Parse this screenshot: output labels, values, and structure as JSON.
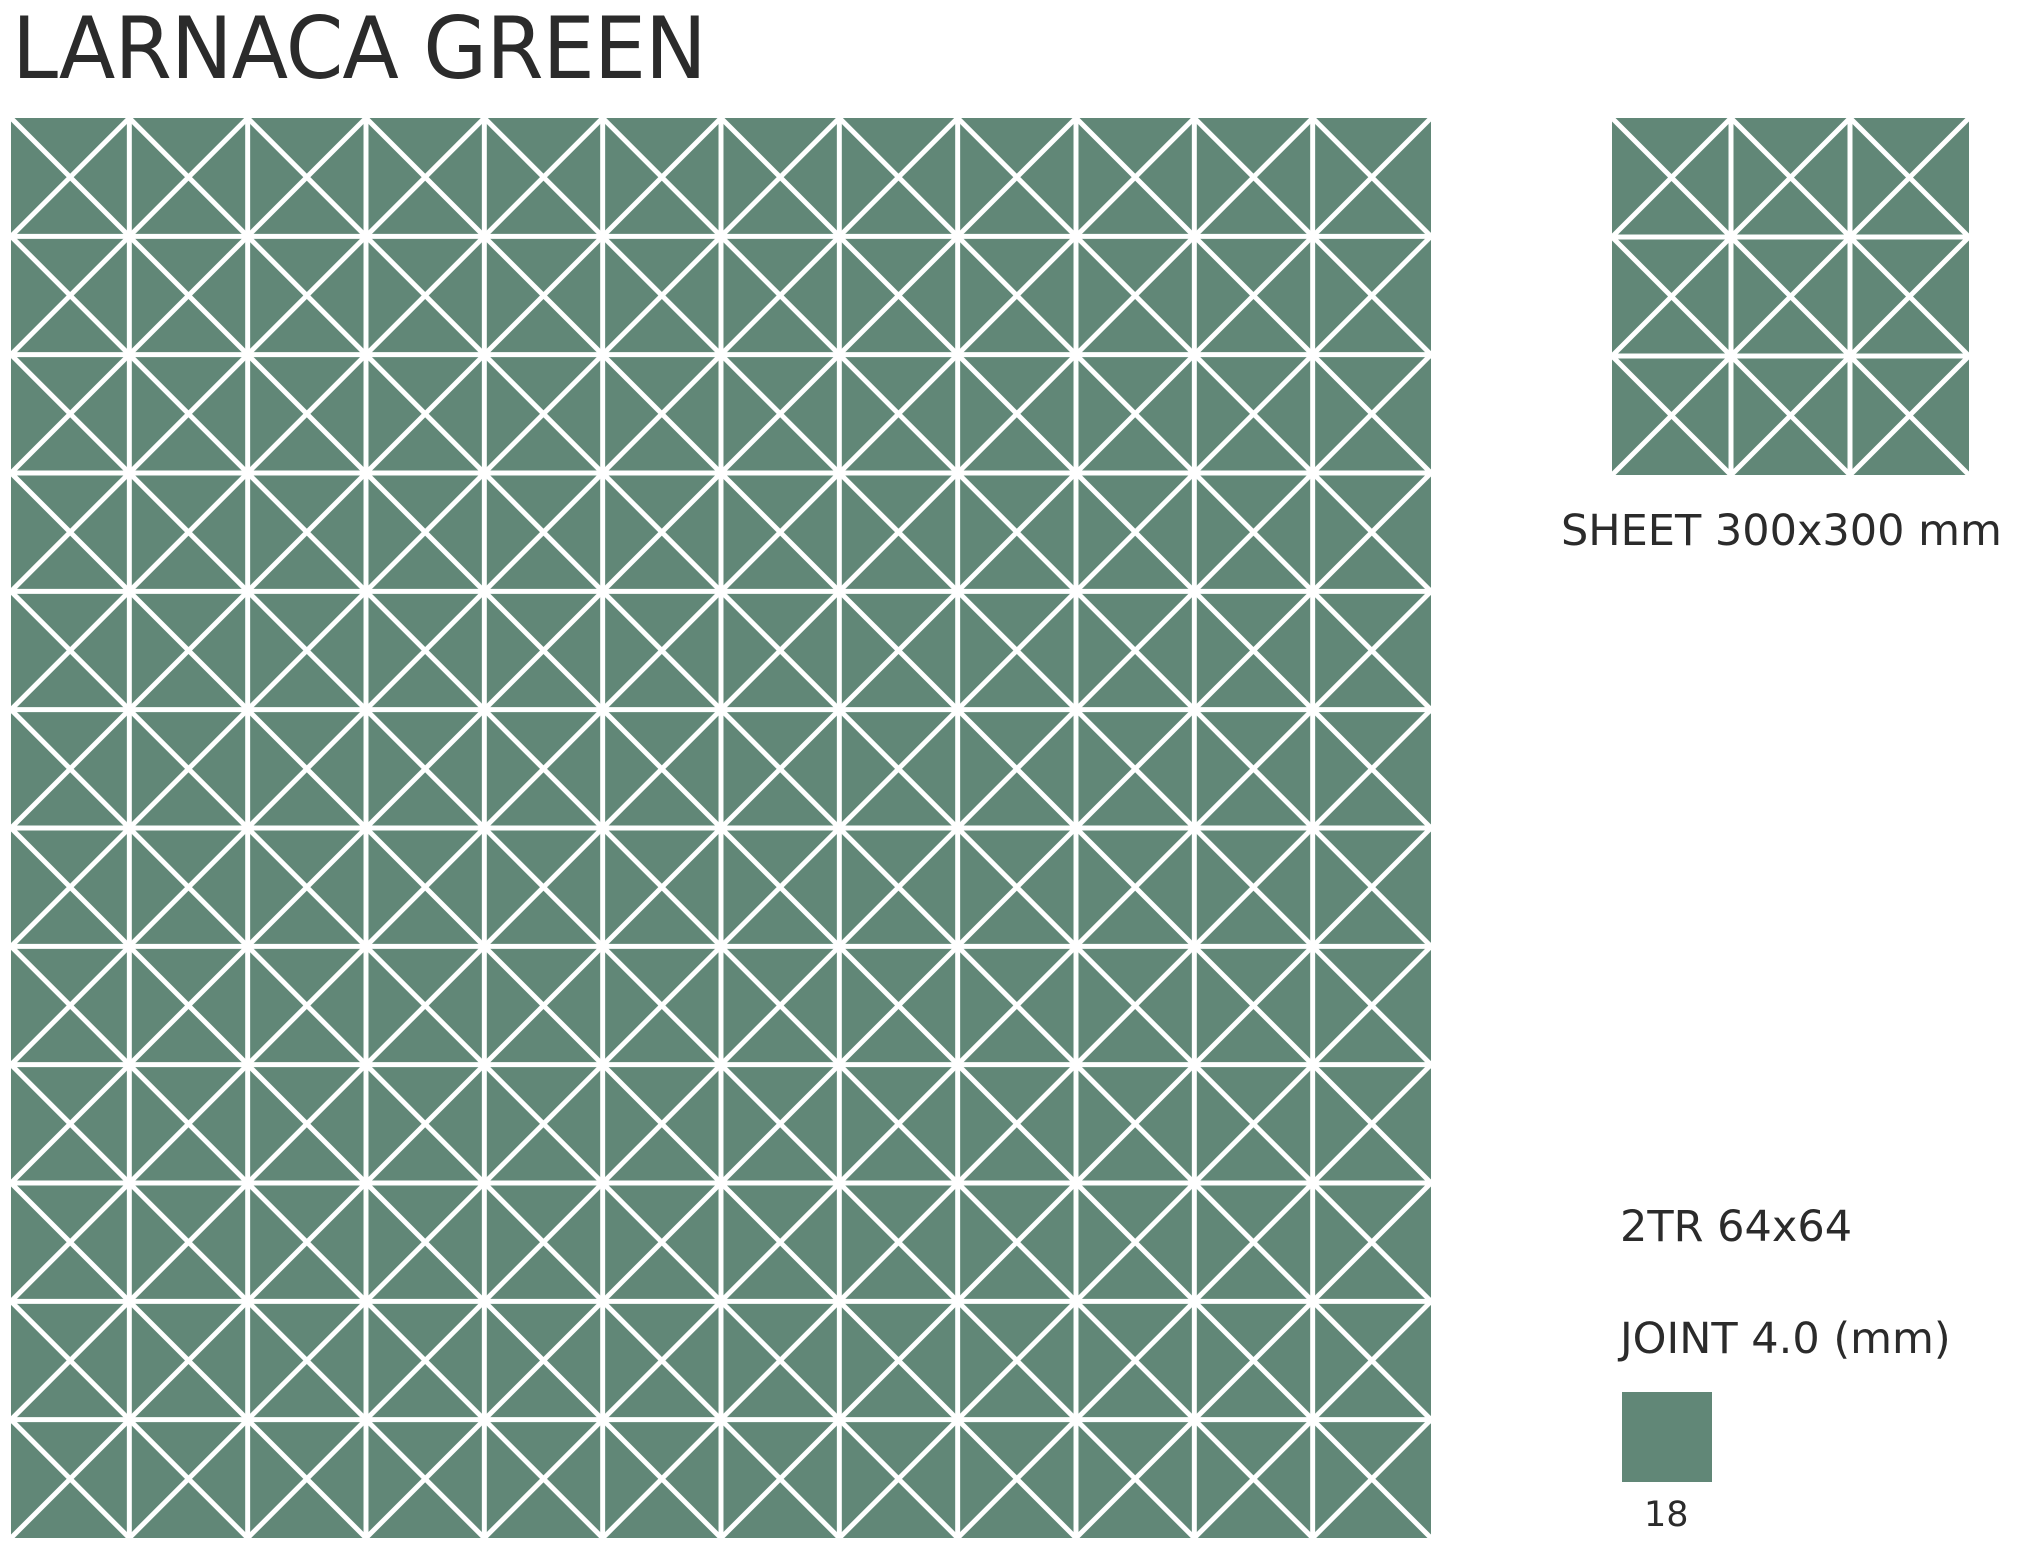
{
  "title": "LARNACA GREEN",
  "colors": {
    "tile": "#618777",
    "joint": "#ffffff",
    "text": "#2b2b2b"
  },
  "main_pattern": {
    "columns": 12,
    "rows": 12
  },
  "sheet_pattern": {
    "columns": 3,
    "rows": 3
  },
  "sheet_label": "SHEET 300x300 mm",
  "tile_label": "2TR 64x64",
  "joint_label": "JOINT 4.0 (mm)",
  "swatch_code": "18"
}
